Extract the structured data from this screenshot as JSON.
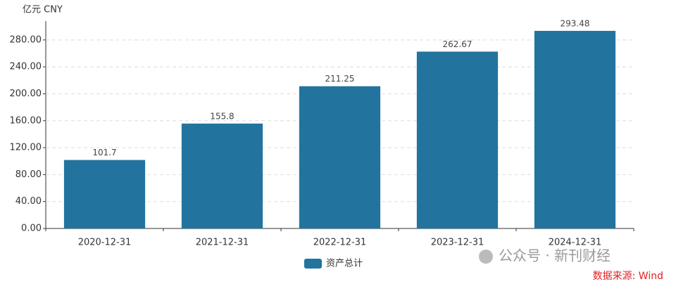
{
  "chart_data": {
    "type": "bar",
    "unit_label": "亿元  CNY",
    "categories": [
      "2020-12-31",
      "2021-12-31",
      "2022-12-31",
      "2023-12-31",
      "2024-12-31"
    ],
    "series": [
      {
        "name": "资产总计",
        "color": "#22749f",
        "values": [
          101.7,
          155.8,
          211.25,
          262.67,
          293.48
        ]
      }
    ],
    "ylim": [
      0,
      308
    ],
    "yticks": [
      {
        "value": 0,
        "label": "0.00"
      },
      {
        "value": 40,
        "label": "40.00"
      },
      {
        "value": 80,
        "label": "80.00"
      },
      {
        "value": 120,
        "label": "120.00"
      },
      {
        "value": 160,
        "label": "160.00"
      },
      {
        "value": 200,
        "label": "200.00"
      },
      {
        "value": 240,
        "label": "240.00"
      },
      {
        "value": 280,
        "label": "280.00"
      }
    ],
    "grid": true,
    "watermark": "公众号 · 新刊财经",
    "source": "数据来源: Wind"
  }
}
